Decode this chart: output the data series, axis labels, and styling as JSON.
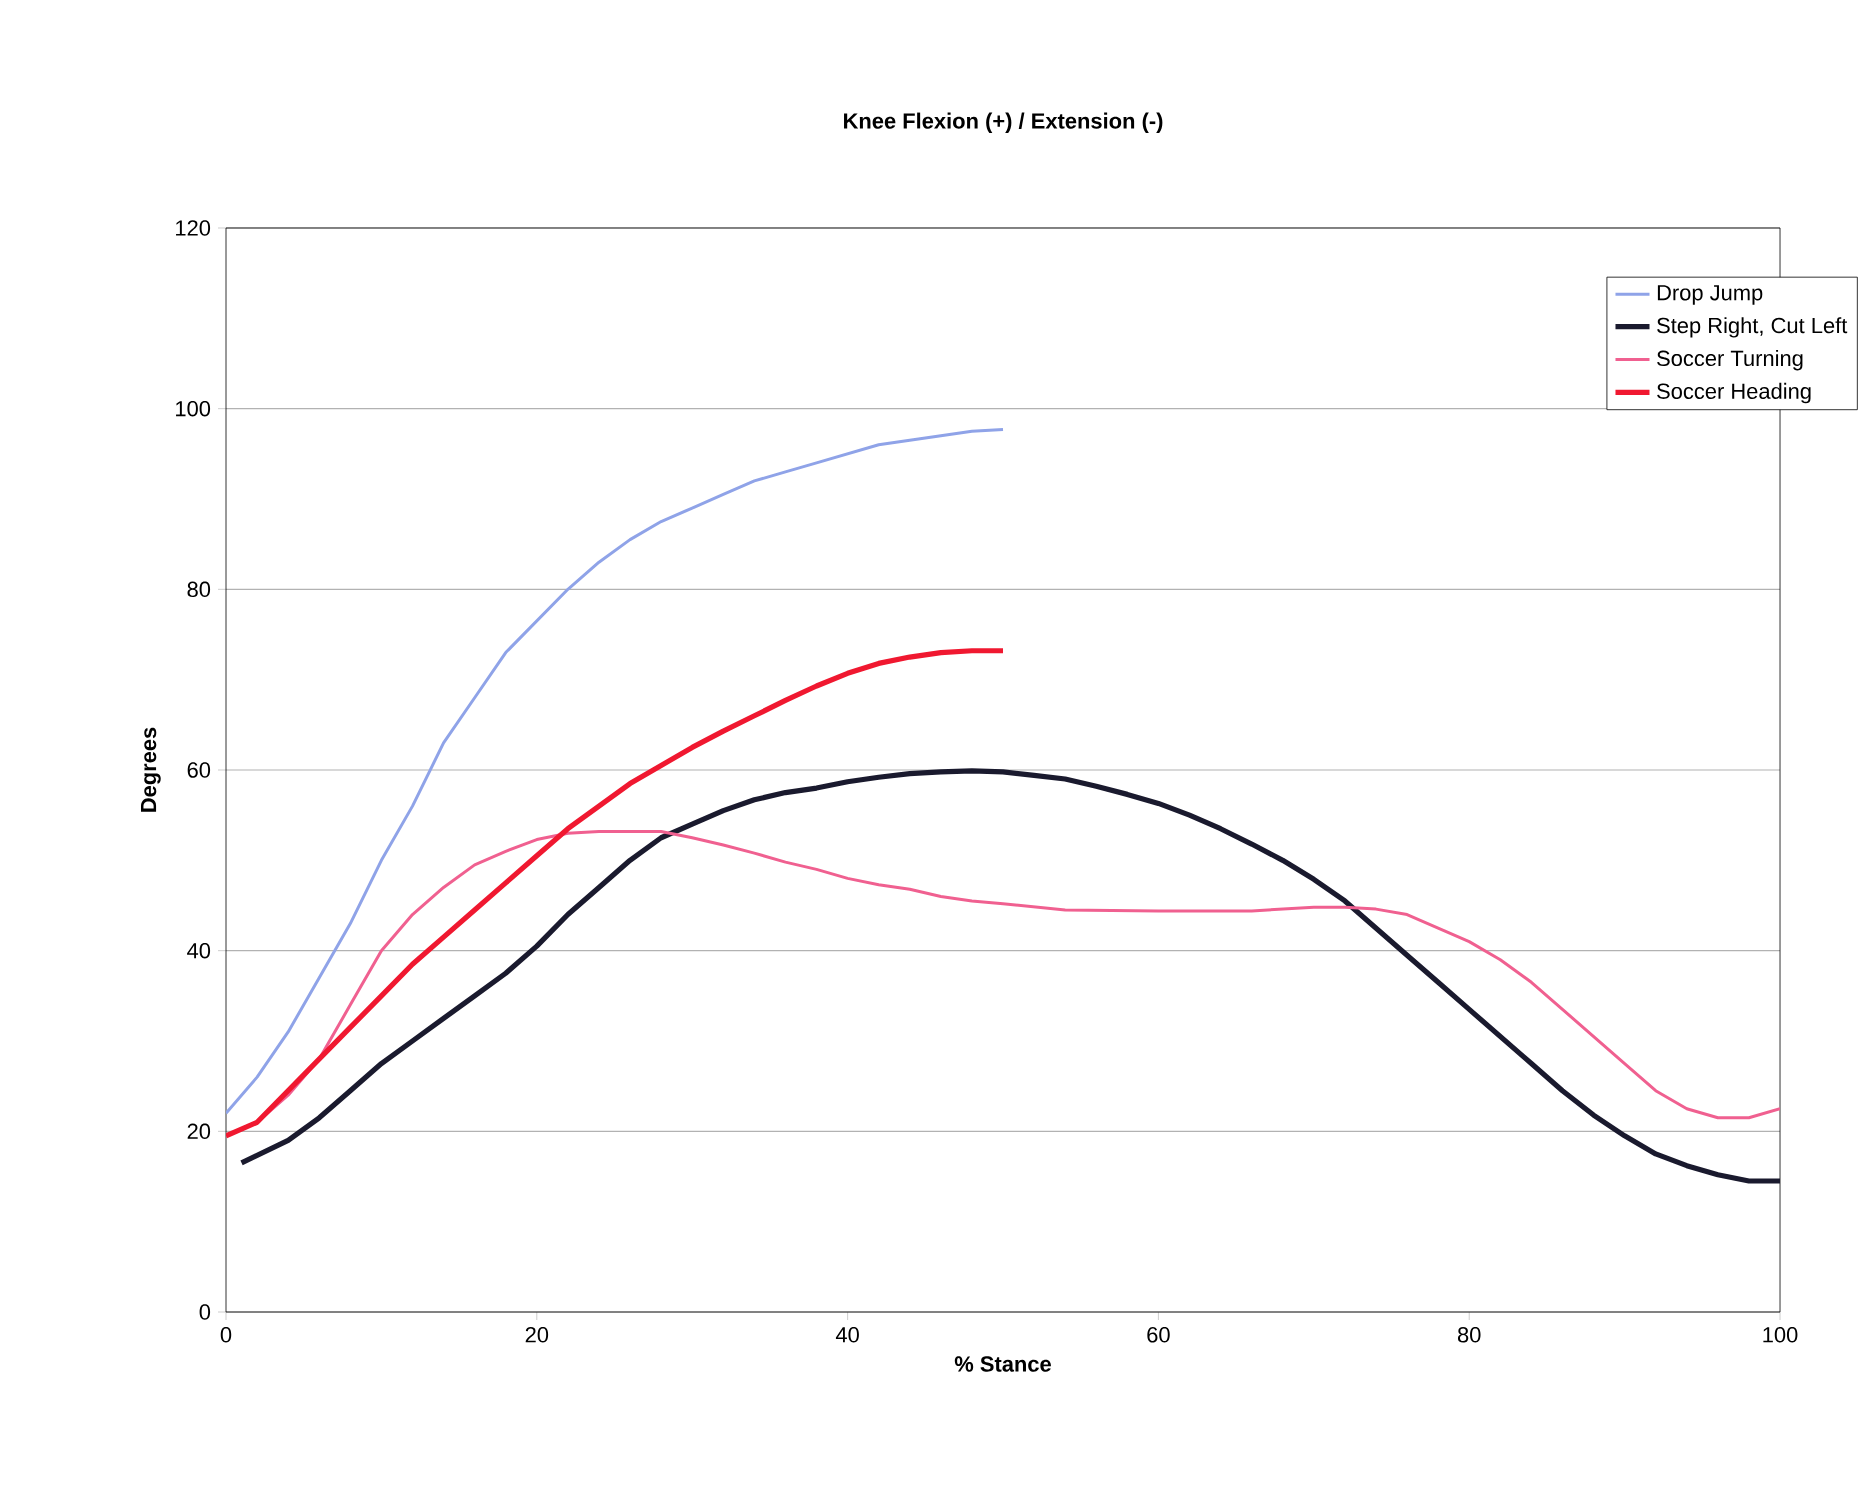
{
  "chart_data": {
    "type": "line",
    "title": "Knee Flexion (+) / Extension (-)",
    "xlabel": "% Stance",
    "ylabel": "Degrees",
    "xlim": [
      0,
      100
    ],
    "xticks": [
      0,
      20,
      40,
      60,
      80,
      100
    ],
    "ylim": [
      0,
      120
    ],
    "yticks": [
      0,
      20,
      40,
      60,
      80,
      100,
      120
    ],
    "grid": "y",
    "legend": "top right",
    "marker": "none",
    "line_style": "solid",
    "series": [
      {
        "name": "Drop Jump",
        "color": "#8fa3e8",
        "x": [
          0,
          2,
          4,
          6,
          8,
          10,
          12,
          14,
          16,
          18,
          20,
          22,
          24,
          26,
          28,
          30,
          32,
          34,
          36,
          38,
          40,
          42,
          44,
          46,
          48,
          50
        ],
        "values": [
          22,
          26,
          31,
          37,
          43,
          50,
          56,
          63,
          68,
          73,
          76.5,
          80,
          83,
          85.5,
          87.5,
          89,
          90.5,
          92,
          93,
          94,
          95,
          96,
          96.5,
          97,
          97.5,
          97.7
        ]
      },
      {
        "name": "Step Right, Cut Left",
        "color": "#1a1a2e",
        "x": [
          1,
          4,
          6,
          8,
          10,
          12,
          14,
          16,
          18,
          20,
          22,
          24,
          26,
          28,
          30,
          32,
          34,
          36,
          38,
          40,
          42,
          44,
          46,
          48,
          50,
          52,
          54,
          56,
          58,
          60,
          62,
          64,
          66,
          68,
          70,
          72,
          74,
          76,
          78,
          80,
          82,
          84,
          86,
          88,
          90,
          92,
          94,
          96,
          98,
          100
        ],
        "values": [
          16.5,
          19,
          21.5,
          24.5,
          27.5,
          30,
          32.5,
          35,
          37.5,
          40.5,
          44,
          47,
          50,
          52.5,
          54,
          55.5,
          56.7,
          57.5,
          58,
          58.7,
          59.2,
          59.6,
          59.8,
          59.9,
          59.8,
          59.4,
          59,
          58.2,
          57.3,
          56.3,
          55,
          53.5,
          51.8,
          50,
          47.9,
          45.5,
          42.5,
          39.5,
          36.5,
          33.5,
          30.5,
          27.5,
          24.5,
          21.8,
          19.5,
          17.5,
          16.2,
          15.2,
          14.5,
          14.5
        ]
      },
      {
        "name": "Soccer Turning",
        "color": "#f06090",
        "x": [
          0,
          2,
          4,
          6,
          8,
          10,
          12,
          14,
          16,
          18,
          20,
          22,
          24,
          26,
          28,
          30,
          32,
          34,
          36,
          38,
          40,
          42,
          44,
          46,
          48,
          50,
          54,
          60,
          66,
          70,
          72,
          74,
          76,
          78,
          80,
          82,
          84,
          86,
          88,
          90,
          92,
          94,
          96,
          98,
          100
        ],
        "values": [
          19.5,
          21,
          24,
          28,
          34,
          40,
          44,
          47,
          49.5,
          51,
          52.3,
          53,
          53.2,
          53.2,
          53.2,
          52.5,
          51.7,
          50.8,
          49.8,
          49,
          48,
          47.3,
          46.8,
          46,
          45.5,
          45.2,
          44.5,
          44.4,
          44.4,
          44.8,
          44.8,
          44.6,
          44,
          42.5,
          41,
          39,
          36.5,
          33.5,
          30.5,
          27.5,
          24.5,
          22.5,
          21.5,
          21.5,
          22.5
        ]
      },
      {
        "name": "Soccer Heading",
        "color": "#f01830",
        "x": [
          0,
          2,
          4,
          6,
          8,
          10,
          12,
          14,
          16,
          18,
          20,
          22,
          24,
          26,
          28,
          30,
          32,
          34,
          36,
          38,
          40,
          42,
          44,
          46,
          48,
          50
        ],
        "values": [
          19.5,
          21,
          24.5,
          28,
          31.5,
          35,
          38.5,
          41.5,
          44.5,
          47.5,
          50.5,
          53.5,
          56,
          58.5,
          60.5,
          62.5,
          64.3,
          66,
          67.7,
          69.3,
          70.7,
          71.8,
          72.5,
          73,
          73.2,
          73.2
        ]
      }
    ]
  }
}
